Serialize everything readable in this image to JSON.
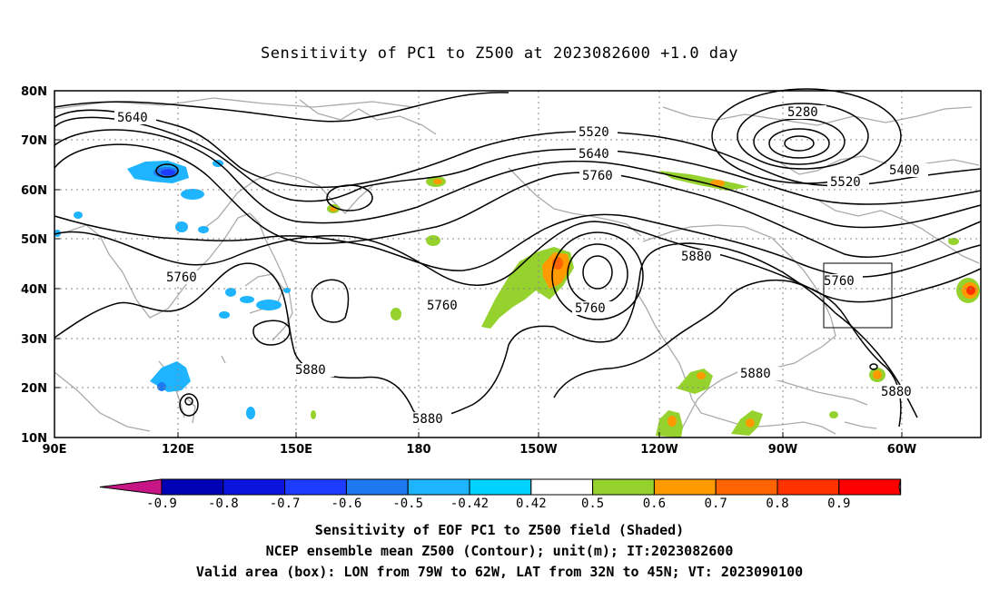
{
  "title": "Sensitivity of PC1 to Z500 at 2023082600 +1.0 day",
  "map": {
    "lat_labels": [
      "80N",
      "70N",
      "60N",
      "50N",
      "40N",
      "30N",
      "20N",
      "10N"
    ],
    "lon_labels": [
      "90E",
      "120E",
      "150E",
      "180",
      "150W",
      "120W",
      "90W",
      "60W"
    ],
    "contour_labels": [
      {
        "text": "5640"
      },
      {
        "text": "5520"
      },
      {
        "text": "5640"
      },
      {
        "text": "5760"
      },
      {
        "text": "5280"
      },
      {
        "text": "5400"
      },
      {
        "text": "5520"
      },
      {
        "text": "5760"
      },
      {
        "text": "5760"
      },
      {
        "text": "5760"
      },
      {
        "text": "5880"
      },
      {
        "text": "5760"
      },
      {
        "text": "5880"
      },
      {
        "text": "5880"
      },
      {
        "text": "5880"
      },
      {
        "text": "5880"
      }
    ],
    "valid_box": {
      "lon_from": "79W",
      "lon_to": "62W",
      "lat_from": "32N",
      "lat_to": "45N"
    }
  },
  "colorbar": {
    "labels": [
      "-0.9",
      "-0.8",
      "-0.7",
      "-0.6",
      "-0.5",
      "-0.42",
      "0.42",
      "0.5",
      "0.6",
      "0.7",
      "0.8",
      "0.9"
    ],
    "colors": [
      "#c71585",
      "#0000b4",
      "#0a14dc",
      "#1e3cff",
      "#1e78f0",
      "#1eb4ff",
      "#00d2ff",
      "#ffffff",
      "#96d22d",
      "#ff9b00",
      "#ff6400",
      "#ff3200",
      "#ff0000",
      "#f7a0c8"
    ]
  },
  "captions": {
    "line1": "Sensitivity of EOF PC1 to Z500 field (Shaded)",
    "line2": "NCEP ensemble mean Z500 (Contour); unit(m); IT:2023082600",
    "line3": "Valid area (box): LON from 79W to 62W, LAT from 32N to 45N; VT: 2023090100"
  }
}
